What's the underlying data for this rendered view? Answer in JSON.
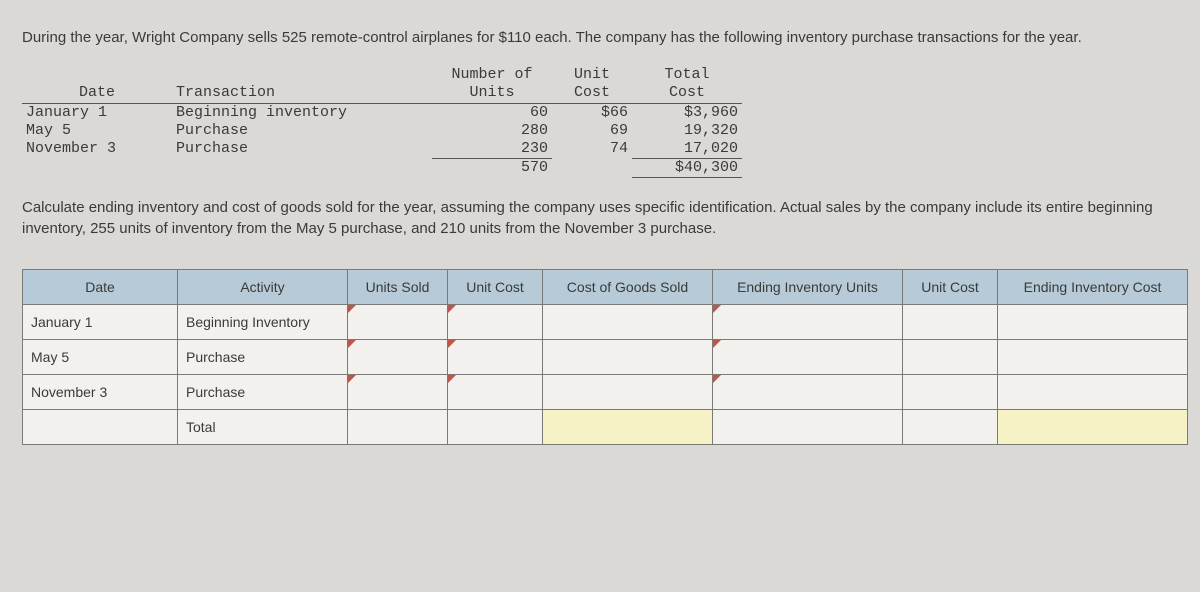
{
  "intro": "During the year, Wright Company sells 525 remote-control airplanes for $110 each. The company has the following inventory purchase transactions for the year.",
  "inv_head": {
    "date": "Date",
    "transaction": "Transaction",
    "n_units_l1": "Number of",
    "n_units_l2": "Units",
    "unit_cost_l1": "Unit",
    "unit_cost_l2": "Cost",
    "total_cost_l1": "Total",
    "total_cost_l2": "Cost"
  },
  "inv_rows": [
    {
      "date": "January 1",
      "tx": "Beginning inventory",
      "units": "60",
      "uc": "$66",
      "tc": "$3,960"
    },
    {
      "date": "May 5",
      "tx": "Purchase",
      "units": "280",
      "uc": "69",
      "tc": "19,320"
    },
    {
      "date": "November 3",
      "tx": "Purchase",
      "units": "230",
      "uc": "74",
      "tc": "17,020"
    }
  ],
  "inv_totals": {
    "units": "570",
    "cost": "$40,300"
  },
  "prompt": "Calculate ending inventory and cost of goods sold for the year, assuming the company uses specific identification. Actual sales by the company include its entire beginning inventory, 255 units of inventory from the May 5 purchase, and 210 units from the November 3 purchase.",
  "ans_head": {
    "date": "Date",
    "activity": "Activity",
    "units_sold": "Units Sold",
    "unit_cost": "Unit Cost",
    "cogs": "Cost of Goods Sold",
    "eiu": "Ending Inventory Units",
    "unit_cost2": "Unit Cost",
    "eic": "Ending Inventory Cost"
  },
  "ans_rows": [
    {
      "date": "January 1",
      "activity": "Beginning Inventory"
    },
    {
      "date": "May 5",
      "activity": "Purchase"
    },
    {
      "date": "November 3",
      "activity": "Purchase"
    },
    {
      "date": "",
      "activity": "Total"
    }
  ]
}
